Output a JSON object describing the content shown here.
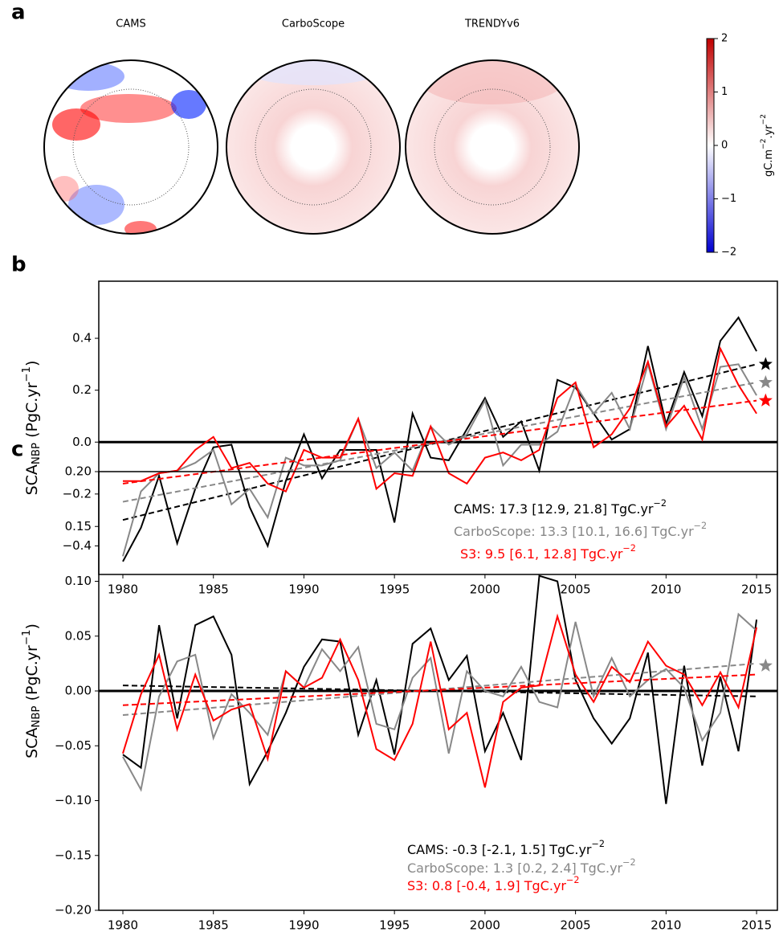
{
  "chart_data": [
    {
      "type": "map",
      "panel": "a",
      "titles": [
        "CAMS",
        "CarboScope",
        "TRENDYv6"
      ],
      "colorbar": {
        "clim": [
          -2,
          2
        ],
        "ticks": [
          2,
          1,
          0,
          {
            "value": -1,
            "label": "−1"
          },
          {
            "value": -2,
            "label": "−2"
          }
        ],
        "label": [
          {
            "text": "gC.m",
            "sup": "−2"
          },
          {
            "text": ".yr",
            "sup": "−2"
          }
        ]
      }
    },
    {
      "type": "line",
      "panel": "b",
      "ylabel": [
        {
          "text": "SCA",
          "sub": "NBP"
        },
        {
          "text": " (PgC.yr",
          "sup": "−1"
        },
        {
          "text": ")"
        }
      ],
      "x": [
        1980,
        1981,
        1982,
        1983,
        1984,
        1985,
        1986,
        1987,
        1988,
        1989,
        1990,
        1991,
        1992,
        1993,
        1994,
        1995,
        1996,
        1997,
        1998,
        1999,
        2000,
        2001,
        2002,
        2003,
        2004,
        2005,
        2006,
        2007,
        2008,
        2009,
        2010,
        2011,
        2012,
        2013,
        2014,
        2015
      ],
      "xlim": [
        1978.67,
        2016.15
      ],
      "xticks": [
        1980,
        1985,
        1990,
        1995,
        2000,
        2005,
        2010,
        2015
      ],
      "ylim": [
        -0.51,
        0.62
      ],
      "yticks": [
        {
          "value": -0.4,
          "label": "−0.4"
        },
        {
          "value": -0.2,
          "label": "−0.2"
        },
        {
          "value": 0,
          "label": "0.0"
        },
        {
          "value": 0.2,
          "label": "0.2"
        },
        {
          "value": 0.4,
          "label": "0.4"
        }
      ],
      "zero_line": 0,
      "trend_x": [
        1980,
        2015
      ],
      "star_x": 2015.5,
      "series": [
        {
          "name": "CAMS",
          "color": "#000000",
          "values": [
            -0.46,
            -0.33,
            -0.13,
            -0.39,
            -0.18,
            -0.02,
            -0.01,
            -0.25,
            -0.4,
            -0.15,
            0.03,
            -0.14,
            -0.03,
            -0.03,
            -0.03,
            -0.31,
            0.11,
            -0.06,
            -0.07,
            0.05,
            0.17,
            0.02,
            0.08,
            -0.11,
            0.24,
            0.21,
            0.11,
            0.01,
            0.05,
            0.37,
            0.07,
            0.27,
            0.1,
            0.39,
            0.48,
            0.35
          ],
          "trend": [
            -0.3,
            0.3
          ],
          "star": 0.3,
          "annotation": [
            {
              "text": "CAMS:   17.3 [12.9, 21.8] TgC.yr",
              "sup": "−2"
            }
          ]
        },
        {
          "name": "CarboScope",
          "color": "#888888",
          "values": [
            -0.44,
            -0.19,
            -0.12,
            -0.11,
            -0.08,
            -0.03,
            -0.24,
            -0.18,
            -0.29,
            -0.06,
            -0.09,
            -0.09,
            -0.07,
            0.09,
            -0.1,
            -0.04,
            -0.11,
            0.06,
            -0.01,
            0.03,
            0.16,
            -0.09,
            -0.01,
            -0.01,
            0.04,
            0.22,
            0.11,
            0.19,
            0.05,
            0.3,
            0.05,
            0.25,
            0.05,
            0.29,
            0.3,
            0.18
          ],
          "trend": [
            -0.23,
            0.23
          ],
          "star": 0.23,
          "annotation": [
            {
              "text": "CarboScope:   13.3 [10.1, 16.6] TgC.yr",
              "sup": "−2"
            }
          ]
        },
        {
          "name": "S3",
          "color": "#ff0000",
          "values": [
            -0.15,
            -0.15,
            -0.12,
            -0.11,
            -0.03,
            0.02,
            -0.1,
            -0.08,
            -0.16,
            -0.19,
            -0.03,
            -0.06,
            -0.06,
            0.09,
            -0.18,
            -0.12,
            -0.13,
            0.06,
            -0.12,
            -0.16,
            -0.06,
            -0.04,
            -0.07,
            -0.03,
            0.17,
            0.23,
            -0.02,
            0.03,
            0.13,
            0.31,
            0.06,
            0.14,
            0.01,
            0.36,
            0.22,
            0.11
          ],
          "trend": [
            -0.16,
            0.16
          ],
          "star": 0.16,
          "annotation": [
            {
              "text": "S3:  9.5 [6.1, 12.8] TgC.yr",
              "sup": "−2"
            }
          ]
        }
      ]
    },
    {
      "type": "line",
      "panel": "c",
      "ylabel": [
        {
          "text": "SCA",
          "sub": "NBP"
        },
        {
          "text": " (PgC.yr",
          "sup": "−1"
        },
        {
          "text": ")"
        }
      ],
      "x": [
        1980,
        1981,
        1982,
        1983,
        1984,
        1985,
        1986,
        1987,
        1988,
        1989,
        1990,
        1991,
        1992,
        1993,
        1994,
        1995,
        1996,
        1997,
        1998,
        1999,
        2000,
        2001,
        2002,
        2003,
        2004,
        2005,
        2006,
        2007,
        2008,
        2009,
        2010,
        2011,
        2012,
        2013,
        2014,
        2015
      ],
      "xlim": [
        1978.67,
        2016.15
      ],
      "xticks": [
        1980,
        1985,
        1990,
        1995,
        2000,
        2005,
        2010,
        2015
      ],
      "ylim": [
        -0.2,
        0.2
      ],
      "yticks": [
        {
          "value": -0.2,
          "label": "−0.20"
        },
        {
          "value": -0.15,
          "label": "−0.15"
        },
        {
          "value": -0.1,
          "label": "−0.10"
        },
        {
          "value": -0.05,
          "label": "−0.05"
        },
        {
          "value": 0,
          "label": "0.00"
        },
        {
          "value": 0.05,
          "label": "0.05"
        },
        {
          "value": 0.1,
          "label": "0.10"
        },
        {
          "value": 0.15,
          "label": "0.15"
        },
        {
          "value": 0.2,
          "label": "0.20"
        }
      ],
      "zero_line": 0,
      "trend_x": [
        1980,
        2015
      ],
      "star_x": 2015.5,
      "series": [
        {
          "name": "CAMS",
          "color": "#000000",
          "values": [
            -0.058,
            -0.07,
            0.06,
            -0.025,
            0.06,
            0.068,
            0.033,
            -0.085,
            -0.055,
            -0.02,
            0.022,
            0.047,
            0.045,
            -0.04,
            0.01,
            -0.058,
            0.043,
            0.057,
            0.01,
            0.032,
            -0.055,
            -0.02,
            -0.063,
            0.105,
            0.1,
            0.01,
            -0.025,
            -0.048,
            -0.025,
            0.035,
            -0.103,
            0.023,
            -0.068,
            0.013,
            -0.055,
            0.065
          ],
          "trend": [
            0.005,
            -0.005
          ],
          "annotation": [
            {
              "text": "CAMS:    -0.3 [-2.1, 1.5] TgC.yr",
              "sup": "−2"
            }
          ]
        },
        {
          "name": "CarboScope",
          "color": "#888888",
          "values": [
            -0.06,
            -0.09,
            -0.005,
            0.027,
            0.033,
            -0.043,
            -0.003,
            -0.02,
            -0.04,
            0.018,
            0.003,
            0.038,
            0.018,
            0.04,
            -0.03,
            -0.035,
            0.012,
            0.03,
            -0.057,
            0.018,
            0.0,
            -0.005,
            0.022,
            -0.01,
            -0.015,
            0.063,
            -0.005,
            0.03,
            -0.005,
            0.01,
            0.02,
            0.003,
            -0.045,
            -0.02,
            0.07,
            0.055
          ],
          "trend": [
            -0.022,
            0.025
          ],
          "star": 0.023,
          "annotation": [
            {
              "text": "CarboScope:   1.3 [0.2, 2.4] TgC.yr",
              "sup": "−2"
            }
          ]
        },
        {
          "name": "S3",
          "color": "#ff0000",
          "values": [
            -0.057,
            -0.003,
            0.033,
            -0.035,
            0.015,
            -0.027,
            -0.017,
            -0.012,
            -0.062,
            0.018,
            0.003,
            0.012,
            0.047,
            0.01,
            -0.053,
            -0.063,
            -0.03,
            0.045,
            -0.035,
            -0.02,
            -0.088,
            -0.01,
            0.003,
            0.005,
            0.068,
            0.015,
            -0.01,
            0.022,
            0.008,
            0.045,
            0.023,
            0.015,
            -0.013,
            0.017,
            -0.015,
            0.058
          ],
          "trend": [
            -0.013,
            0.015
          ],
          "annotation": [
            {
              "text": "S3:  0.8 [-0.4, 1.9] TgC.yr",
              "sup": "−2"
            }
          ]
        }
      ]
    }
  ]
}
